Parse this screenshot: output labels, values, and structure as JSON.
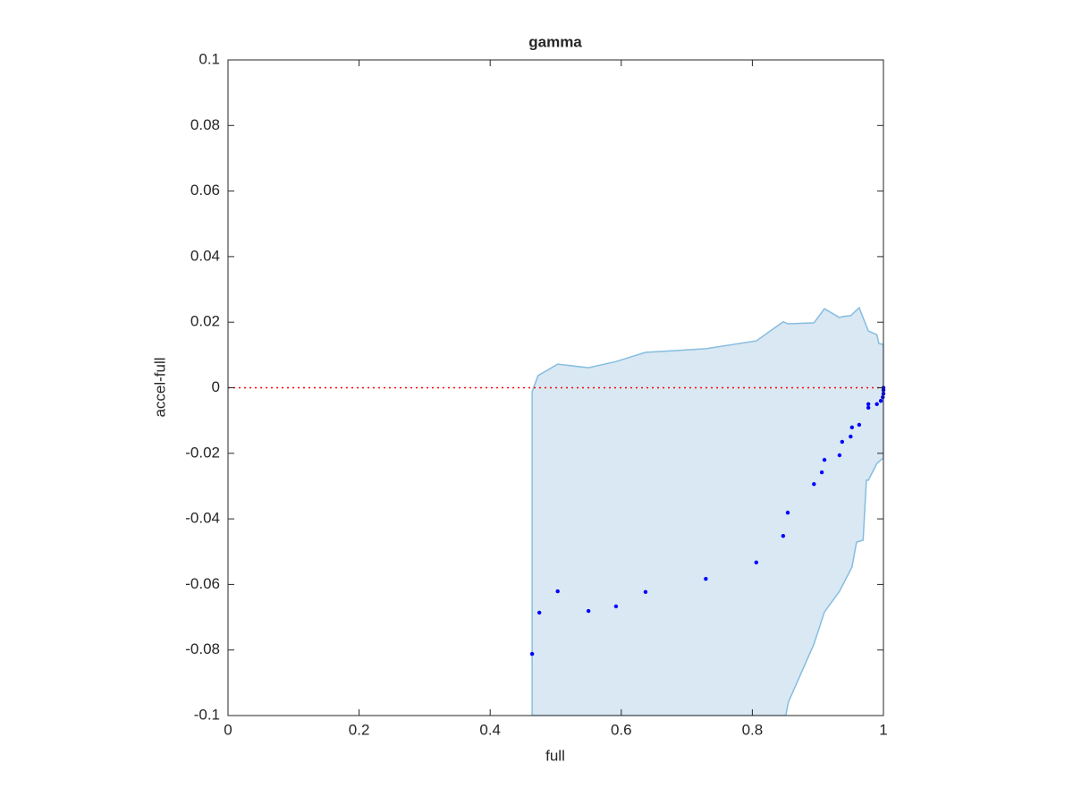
{
  "chart_data": {
    "type": "scatter",
    "title": "gamma",
    "x_label": "full",
    "y_label": "accel-full",
    "xlim": [
      0,
      1
    ],
    "ylim": [
      -0.1,
      0.1
    ],
    "xticks": [
      0,
      0.2,
      0.4,
      0.6,
      0.8,
      1
    ],
    "yticks": [
      -0.1,
      -0.08,
      -0.06,
      -0.04,
      -0.02,
      0,
      0.02,
      0.04,
      0.06,
      0.08,
      0.1
    ],
    "grid": false,
    "series": [
      {
        "color": "#0000ff",
        "x": [
          0.464,
          0.475,
          0.503,
          0.55,
          0.592,
          0.637,
          0.729,
          0.806,
          0.847,
          0.854,
          0.894,
          0.906,
          0.91,
          0.933,
          0.937,
          0.95,
          0.952,
          0.963,
          0.977,
          0.977,
          0.99,
          0.996,
          0.999,
          1.0,
          1.0,
          1.0
        ],
        "values": [
          -0.0812,
          -0.0686,
          -0.0621,
          -0.0681,
          -0.0667,
          -0.0623,
          -0.0583,
          -0.0533,
          -0.0452,
          -0.0381,
          -0.0294,
          -0.0258,
          -0.022,
          -0.0206,
          -0.0165,
          -0.0149,
          -0.0121,
          -0.0113,
          -0.0061,
          -0.005,
          -0.005,
          -0.004,
          -0.0029,
          -0.0018,
          -0.0007,
          0
        ]
      }
    ],
    "band": {
      "color": "#d9e8f3",
      "edge_color": "#86bde0",
      "x": [
        0.464,
        0.473,
        0.503,
        0.55,
        0.592,
        0.637,
        0.729,
        0.806,
        0.847,
        0.855,
        0.894,
        0.91,
        0.933,
        0.937,
        0.95,
        0.963,
        0.977,
        0.99,
        0.993,
        1.0,
        1.0,
        0.99,
        0.977,
        0.974,
        0.969,
        0.959,
        0.952,
        0.933,
        0.91,
        0.894,
        0.855,
        0.851,
        0.464
      ],
      "y": [
        -0.0012,
        0.0037,
        0.0072,
        0.0061,
        0.008,
        0.0108,
        0.0119,
        0.0143,
        0.0201,
        0.0195,
        0.0198,
        0.0241,
        0.0214,
        0.0217,
        0.022,
        0.0244,
        0.0173,
        0.0162,
        0.0135,
        0.0132,
        -0.0214,
        -0.0231,
        -0.0282,
        -0.0282,
        -0.0465,
        -0.0471,
        -0.0547,
        -0.0621,
        -0.0684,
        -0.0782,
        -0.0959,
        -0.1,
        -0.1
      ]
    },
    "reference_line": {
      "y": 0,
      "color": "#ff0000"
    }
  }
}
